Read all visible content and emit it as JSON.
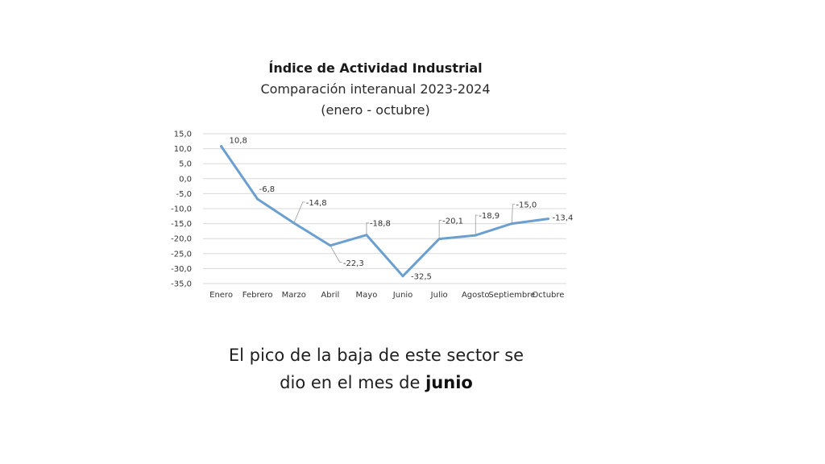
{
  "chart_data": {
    "type": "line",
    "title": "Índice de Actividad Industrial",
    "subtitle": "Comparación interanual 2023-2024",
    "subtitle2": "(enero - octubre)",
    "categories": [
      "Enero",
      "Febrero",
      "Marzo",
      "Abril",
      "Mayo",
      "Junio",
      "Julio",
      "Agosto",
      "Septiembre",
      "Octubre"
    ],
    "series": [
      {
        "values": [
          10.8,
          -6.8,
          -14.8,
          -22.3,
          -18.8,
          -32.5,
          -20.1,
          -18.9,
          -15.0,
          -13.4
        ],
        "labels": [
          "10,8",
          "-6,8",
          "-14,8",
          "-22,3",
          "-18,8",
          "-32,5",
          "-20,1",
          "-18,9",
          "-15,0",
          "-13,4"
        ],
        "color": "#6a9fcf"
      }
    ],
    "yticks": [
      "15,0",
      "10,0",
      "5,0",
      "0,0",
      "-5,0",
      "-10,0",
      "-15,0",
      "-20,0",
      "-25,0",
      "-30,0",
      "-35,0"
    ],
    "ylim": [
      -35,
      15
    ],
    "grid": true,
    "gridColor": "#d9d9d9"
  },
  "caption": {
    "line1": "El pico de la baja de este sector se",
    "line2_prefix": "dio en el mes de ",
    "line2_bold": "junio"
  }
}
